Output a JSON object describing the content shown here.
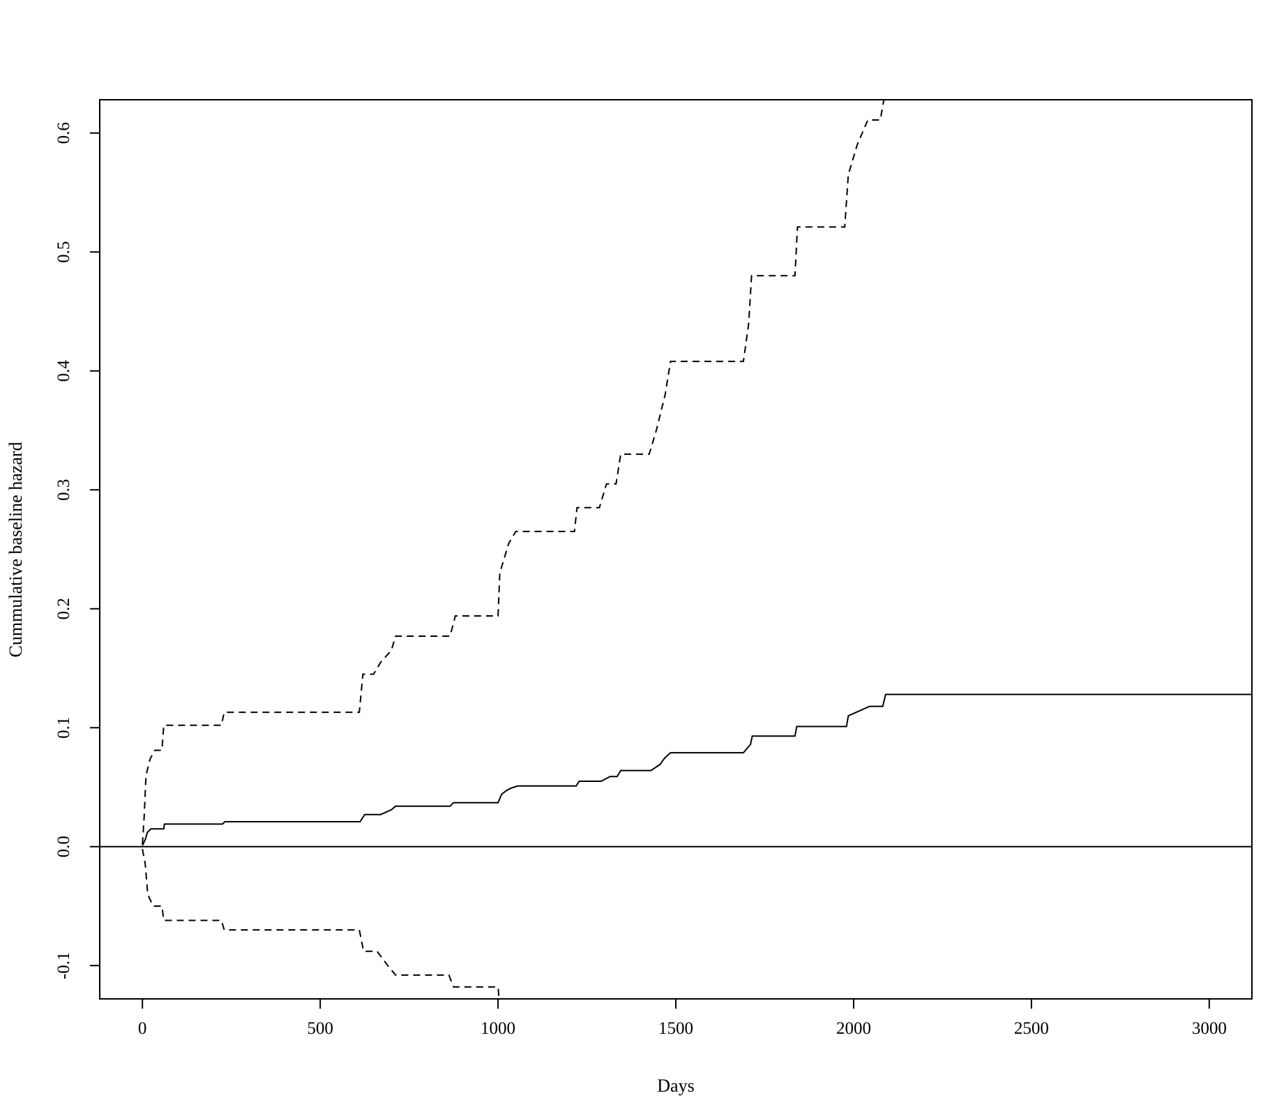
{
  "chart_data": {
    "type": "line",
    "title": "",
    "xlabel": "Days",
    "ylabel": "Cummulative baseline hazard",
    "xlim": [
      -120,
      3120
    ],
    "ylim": [
      -0.128,
      0.628
    ],
    "x_ticks": [
      0,
      500,
      1000,
      1500,
      2000,
      2500,
      3000
    ],
    "x_tick_labels": [
      "0",
      "500",
      "1000",
      "1500",
      "2000",
      "2500",
      "3000"
    ],
    "y_ticks": [
      -0.1,
      0.0,
      0.1,
      0.2,
      0.3,
      0.4,
      0.5,
      0.6
    ],
    "y_tick_labels": [
      "-0.1",
      "0.0",
      "0.1",
      "0.2",
      "0.3",
      "0.4",
      "0.5",
      "0.6"
    ],
    "grid": false,
    "legend": "none",
    "reference_line_y": 0.0,
    "series": [
      {
        "role": "estimate",
        "style": "solid",
        "color": "#000000",
        "x": [
          0,
          8,
          14,
          24,
          60,
          62,
          225,
          232,
          612,
          625,
          670,
          700,
          712,
          865,
          875,
          1000,
          1010,
          1023,
          1035,
          1055,
          1220,
          1228,
          1290,
          1315,
          1335,
          1345,
          1430,
          1455,
          1470,
          1485,
          1690,
          1710,
          1715,
          1835,
          1840,
          1980,
          1985,
          2045,
          2082,
          2090,
          3120
        ],
        "y": [
          0.001,
          0.006,
          0.012,
          0.015,
          0.015,
          0.019,
          0.019,
          0.021,
          0.021,
          0.027,
          0.027,
          0.031,
          0.034,
          0.034,
          0.037,
          0.037,
          0.044,
          0.047,
          0.049,
          0.051,
          0.051,
          0.055,
          0.055,
          0.059,
          0.059,
          0.064,
          0.064,
          0.069,
          0.075,
          0.079,
          0.079,
          0.086,
          0.093,
          0.093,
          0.101,
          0.101,
          0.11,
          0.118,
          0.118,
          0.128,
          0.128
        ]
      },
      {
        "role": "upper_ci",
        "style": "dashed",
        "color": "#000000",
        "x": [
          0,
          5,
          10,
          22,
          35,
          55,
          60,
          222,
          230,
          610,
          620,
          650,
          670,
          700,
          712,
          865,
          880,
          1000,
          1005,
          1020,
          1030,
          1050,
          1215,
          1222,
          1285,
          1305,
          1332,
          1345,
          1425,
          1445,
          1470,
          1485,
          1690,
          1705,
          1713,
          1835,
          1842,
          1975,
          1985,
          2010,
          2040,
          2075,
          2085
        ],
        "y": [
          0.002,
          0.025,
          0.06,
          0.074,
          0.081,
          0.081,
          0.102,
          0.102,
          0.113,
          0.113,
          0.145,
          0.145,
          0.155,
          0.165,
          0.177,
          0.177,
          0.194,
          0.194,
          0.23,
          0.245,
          0.255,
          0.265,
          0.265,
          0.285,
          0.285,
          0.305,
          0.305,
          0.33,
          0.33,
          0.35,
          0.38,
          0.408,
          0.408,
          0.44,
          0.48,
          0.48,
          0.521,
          0.521,
          0.565,
          0.59,
          0.611,
          0.611,
          0.628
        ]
      },
      {
        "role": "lower_ci",
        "style": "dashed",
        "color": "#000000",
        "x": [
          0,
          8,
          15,
          30,
          55,
          60,
          222,
          230,
          610,
          622,
          660,
          690,
          712,
          862,
          875,
          1000,
          1003
        ],
        "y": [
          -0.002,
          -0.015,
          -0.04,
          -0.05,
          -0.05,
          -0.062,
          -0.062,
          -0.07,
          -0.07,
          -0.088,
          -0.088,
          -0.1,
          -0.108,
          -0.108,
          -0.118,
          -0.118,
          -0.128
        ]
      }
    ]
  }
}
